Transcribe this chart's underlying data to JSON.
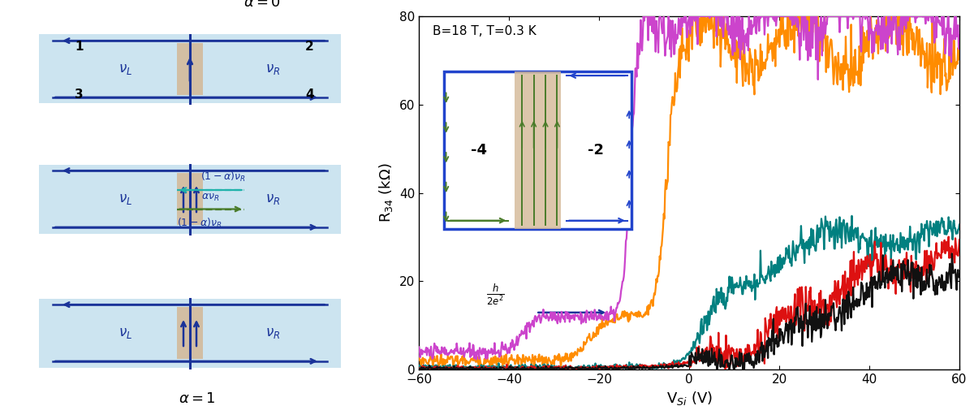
{
  "fig_width": 12.0,
  "fig_height": 5.0,
  "bg_color": "#ffffff",
  "light_blue": "#cce4f0",
  "tan_barrier": "#d4b896",
  "dark_blue": "#1a3399",
  "green_color": "#4a7c2a",
  "teal_color": "#20b2aa",
  "annotation_label": "B=18 T, T=0.3 K",
  "xlabel": "V$_{Si}$ (V)",
  "ylabel": "R$_{34}$ (k$\\Omega$)",
  "xlim": [
    -60,
    60
  ],
  "ylim": [
    0,
    80
  ],
  "xticks": [
    -60,
    -40,
    -20,
    0,
    20,
    40,
    60
  ],
  "yticks": [
    0,
    20,
    40,
    60,
    80
  ]
}
